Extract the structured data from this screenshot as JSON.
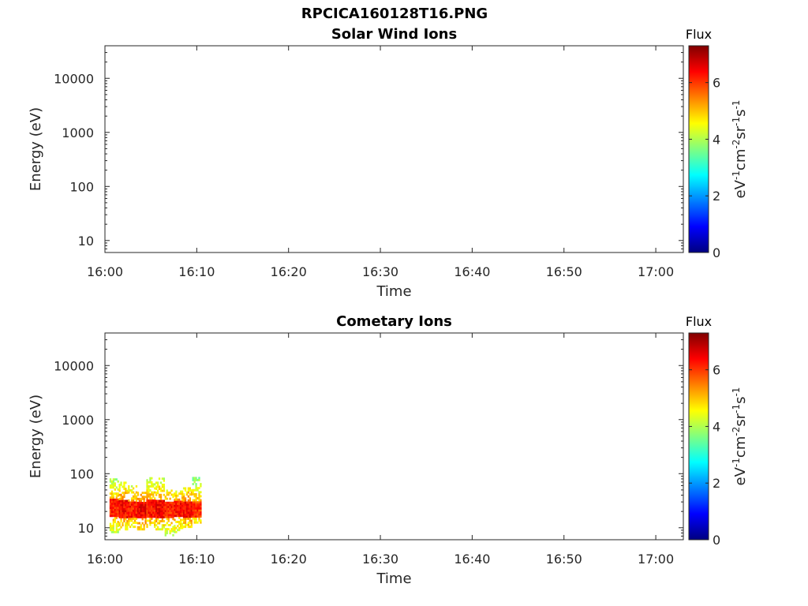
{
  "figure": {
    "title": "RPCICA160128T16.PNG"
  },
  "colormap": [
    "#000080",
    "#0000ff",
    "#0080ff",
    "#00ffff",
    "#80ff80",
    "#ffff00",
    "#ff8000",
    "#ff0000",
    "#800000"
  ],
  "chart_data": [
    {
      "type": "heatmap",
      "title": "Solar Wind Ions",
      "xlabel": "Time",
      "ylabel": "Energy (eV)",
      "x_ticks": [
        "16:00",
        "16:10",
        "16:20",
        "16:30",
        "16:40",
        "16:50",
        "17:00"
      ],
      "xlim": [
        "16:00",
        "17:03"
      ],
      "y_scale": "log",
      "y_ticks": [
        "10",
        "100",
        "1000",
        "10000"
      ],
      "ylim": [
        6,
        40000
      ],
      "colorbar": {
        "title": "Flux",
        "label": "eV-1cm-2sr-1s-1",
        "ticks": [
          "0",
          "2",
          "4",
          "6"
        ],
        "range": [
          0,
          7.3
        ]
      },
      "data": []
    },
    {
      "type": "heatmap",
      "title": "Cometary Ions",
      "xlabel": "Time",
      "ylabel": "Energy (eV)",
      "x_ticks": [
        "16:00",
        "16:10",
        "16:20",
        "16:30",
        "16:40",
        "16:50",
        "17:00"
      ],
      "xlim": [
        "16:00",
        "17:03"
      ],
      "y_scale": "log",
      "y_ticks": [
        "10",
        "100",
        "1000",
        "10000"
      ],
      "ylim": [
        6,
        40000
      ],
      "colorbar": {
        "title": "Flux",
        "label": "eV-1cm-2sr-1s-1",
        "ticks": [
          "0",
          "2",
          "4",
          "6"
        ],
        "range": [
          0,
          7.3
        ]
      },
      "data": [
        {
          "t": "16:01",
          "e_min": 8,
          "e_max": 80,
          "core": [
            15,
            35
          ],
          "peak": 6.6
        },
        {
          "t": "16:02",
          "e_min": 9,
          "e_max": 70,
          "core": [
            15,
            35
          ],
          "peak": 6.8
        },
        {
          "t": "16:03",
          "e_min": 10,
          "e_max": 60,
          "core": [
            15,
            33
          ],
          "peak": 6.7
        },
        {
          "t": "16:04",
          "e_min": 9,
          "e_max": 45,
          "core": [
            14,
            32
          ],
          "peak": 6.9
        },
        {
          "t": "16:05",
          "e_min": 10,
          "e_max": 80,
          "core": [
            15,
            34
          ],
          "peak": 6.7
        },
        {
          "t": "16:06",
          "e_min": 9,
          "e_max": 80,
          "core": [
            15,
            34
          ],
          "peak": 6.8
        },
        {
          "t": "16:07",
          "e_min": 7,
          "e_max": 50,
          "core": [
            14,
            33
          ],
          "peak": 6.6
        },
        {
          "t": "16:08",
          "e_min": 8,
          "e_max": 45,
          "core": [
            15,
            32
          ],
          "peak": 6.7
        },
        {
          "t": "16:09",
          "e_min": 10,
          "e_max": 55,
          "core": [
            15,
            33
          ],
          "peak": 6.8
        },
        {
          "t": "16:10",
          "e_min": 12,
          "e_max": 80,
          "core": [
            15,
            33
          ],
          "peak": 6.5
        }
      ]
    }
  ]
}
